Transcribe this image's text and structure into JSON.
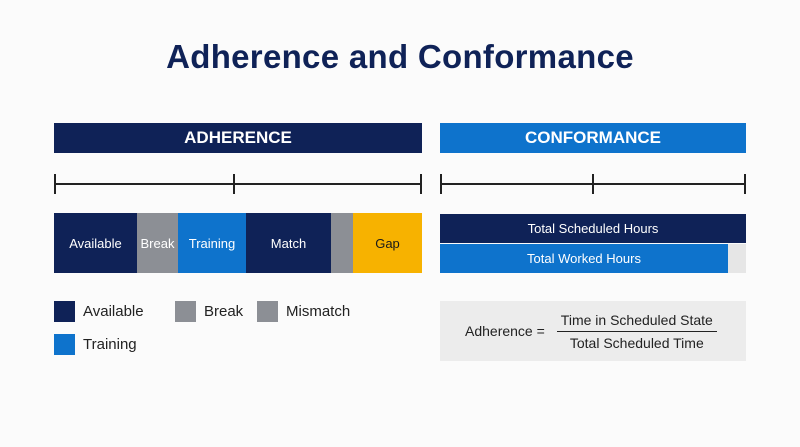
{
  "title": "Adherence and Conformance",
  "adherence": {
    "header": "ADHERENCE",
    "segments": [
      {
        "label": "Available",
        "state": "Available",
        "color": "#0f2257"
      },
      {
        "label": "Break",
        "state": "Break",
        "color": "#8c8f95"
      },
      {
        "label": "Training",
        "state": "Training",
        "color": "#0e73cc"
      },
      {
        "label": "Match",
        "state": "Available",
        "color": "#0f2257"
      },
      {
        "label": "",
        "state": "Mismatch",
        "color": "#8c8f95"
      },
      {
        "label": "Gap",
        "state": "Gap",
        "color": "#f7b200"
      }
    ]
  },
  "conformance": {
    "header": "CONFORMANCE",
    "scheduled_label": "Total Scheduled Hours",
    "worked_label": "Total Worked Hours",
    "worked_fraction": 0.94
  },
  "legend": [
    {
      "label": "Available",
      "color": "#0f2257"
    },
    {
      "label": "Break",
      "color": "#8c8f95"
    },
    {
      "label": "Mismatch",
      "color": "#8c8f95"
    },
    {
      "label": "Training",
      "color": "#0e73cc"
    }
  ],
  "formula": {
    "lhs": "Adherence =",
    "numerator": "Time in Scheduled State",
    "denominator": "Total Scheduled Time"
  },
  "colors": {
    "navy": "#0f2257",
    "blue": "#0e73cc",
    "gray": "#8c8f95",
    "gold": "#f7b200",
    "light_gray": "#e6e6e6"
  }
}
